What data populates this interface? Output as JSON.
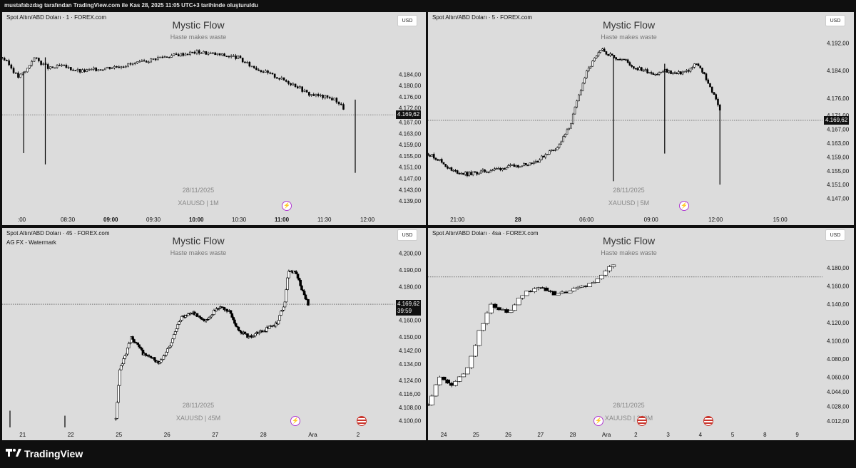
{
  "header": {
    "caption": "mustafabzdag tarafından TradingView.com ile Kas 28, 2025 11:05 UTC+3 tarihinde oluşturuldu"
  },
  "footer": {
    "brand": "TradingView",
    "logo_icon": "tradingview-logo-icon"
  },
  "colors": {
    "background": "#dcdcdc",
    "up": "#ffffff",
    "down": "#000000",
    "border": "#000000",
    "bolt": "#b03bd1",
    "flag": "#c9352c"
  },
  "panels": [
    {
      "symbol": "Spot Altın/ABD Doları · 1 · FOREX.com",
      "subtitle": "",
      "watermark_title": "Mystic Flow",
      "watermark_sub": "Haste makes waste",
      "watermark_date": "28/11/2025",
      "watermark_symbol": "XAUUSD | 1M",
      "currency": "USD",
      "last_price": "4.169,62",
      "countdown": "",
      "chart_data": {
        "type": "candlestick",
        "ylim": [
          4135,
          4200
        ],
        "y_ticks": [
          "4.184,00",
          "4.180,00",
          "4.176,00",
          "4.172,00",
          "4.167,00",
          "4.163,00",
          "4.159,00",
          "4.155,00",
          "4.151,00",
          "4.147,00",
          "4.143,00",
          "4.139,00"
        ],
        "y_tick_values": [
          4184,
          4180,
          4176,
          4172,
          4167,
          4163,
          4159,
          4155,
          4151,
          4147,
          4143,
          4139
        ],
        "x_ticks": [
          ":00",
          "08:30",
          "09:00",
          "09:30",
          "10:00",
          "10:30",
          "11:00",
          "11:30",
          "12:00"
        ],
        "x_tick_bold": [
          false,
          false,
          true,
          false,
          true,
          false,
          true,
          false,
          false
        ],
        "last_price_value": 4169.62,
        "path": [
          [
            0,
            4190
          ],
          [
            0.02,
            4187
          ],
          [
            0.04,
            4183
          ],
          [
            0.06,
            4185
          ],
          [
            0.08,
            4190
          ],
          [
            0.1,
            4188
          ],
          [
            0.12,
            4186
          ],
          [
            0.15,
            4187
          ],
          [
            0.2,
            4185
          ],
          [
            0.25,
            4186
          ],
          [
            0.3,
            4187
          ],
          [
            0.35,
            4188
          ],
          [
            0.4,
            4190
          ],
          [
            0.45,
            4191
          ],
          [
            0.5,
            4192
          ],
          [
            0.55,
            4191
          ],
          [
            0.6,
            4190
          ],
          [
            0.62,
            4188
          ],
          [
            0.65,
            4186
          ],
          [
            0.7,
            4183
          ],
          [
            0.75,
            4180
          ],
          [
            0.78,
            4177
          ],
          [
            0.82,
            4176
          ],
          [
            0.85,
            4175
          ],
          [
            0.87,
            4172
          ]
        ],
        "spikes": [
          {
            "t": 0.055,
            "low": 4156,
            "high": 4185
          },
          {
            "t": 0.11,
            "low": 4152,
            "high": 4190
          },
          {
            "t": 0.9,
            "low": 4149,
            "high": 4175
          }
        ]
      }
    },
    {
      "symbol": "Spot Altın/ABD Doları · 5 · FOREX.com",
      "subtitle": "",
      "watermark_title": "Mystic Flow",
      "watermark_sub": "Haste makes waste",
      "watermark_date": "28/11/2025",
      "watermark_symbol": "XAUUSD | 5M",
      "currency": "USD",
      "last_price": "4.169,62",
      "countdown": "",
      "chart_data": {
        "type": "candlestick",
        "ylim": [
          4143,
          4196
        ],
        "y_ticks": [
          "4.192,00",
          "4.184,00",
          "4.176,00",
          "4.171,00",
          "4.167,00",
          "4.163,00",
          "4.159,00",
          "4.155,00",
          "4.151,00",
          "4.147,00"
        ],
        "y_tick_values": [
          4192,
          4184,
          4176,
          4171,
          4167,
          4163,
          4159,
          4155,
          4151,
          4147
        ],
        "x_ticks": [
          "21:00",
          "28",
          "06:00",
          "09:00",
          "12:00",
          "15:00"
        ],
        "x_tick_bold": [
          false,
          true,
          false,
          false,
          false,
          false
        ],
        "last_price_value": 4169.62,
        "path": [
          [
            0,
            4160
          ],
          [
            0.03,
            4158
          ],
          [
            0.06,
            4155
          ],
          [
            0.1,
            4154
          ],
          [
            0.15,
            4155
          ],
          [
            0.2,
            4156
          ],
          [
            0.25,
            4157
          ],
          [
            0.28,
            4158
          ],
          [
            0.3,
            4160
          ],
          [
            0.33,
            4162
          ],
          [
            0.36,
            4168
          ],
          [
            0.38,
            4176
          ],
          [
            0.4,
            4183
          ],
          [
            0.42,
            4187
          ],
          [
            0.44,
            4190
          ],
          [
            0.47,
            4188
          ],
          [
            0.5,
            4187
          ],
          [
            0.52,
            4185
          ],
          [
            0.55,
            4184
          ],
          [
            0.58,
            4183
          ],
          [
            0.6,
            4184
          ],
          [
            0.63,
            4183
          ],
          [
            0.66,
            4184
          ],
          [
            0.68,
            4186
          ],
          [
            0.7,
            4183
          ],
          [
            0.72,
            4178
          ],
          [
            0.74,
            4173
          ]
        ],
        "spikes": [
          {
            "t": 0.47,
            "low": 4152,
            "high": 4188
          },
          {
            "t": 0.6,
            "low": 4160,
            "high": 4186
          },
          {
            "t": 0.74,
            "low": 4151,
            "high": 4173
          }
        ]
      }
    },
    {
      "symbol": "Spot Altın/ABD Doları · 45 · FOREX.com",
      "subtitle": "AG FX - Watermark",
      "watermark_title": "Mystic Flow",
      "watermark_sub": "Haste makes waste",
      "watermark_date": "28/11/2025",
      "watermark_symbol": "XAUUSD | 45M",
      "currency": "USD",
      "last_price": "4.169,62",
      "countdown": "39:59",
      "chart_data": {
        "type": "candlestick",
        "ylim": [
          4096,
          4205
        ],
        "y_ticks": [
          "4.200,00",
          "4.190,00",
          "4.180,00",
          "4.160,00",
          "4.150,00",
          "4.142,00",
          "4.134,00",
          "4.124,00",
          "4.116,00",
          "4.108,00",
          "4.100,00"
        ],
        "y_tick_values": [
          4200,
          4190,
          4180,
          4160,
          4150,
          4142,
          4134,
          4124,
          4116,
          4108,
          4100
        ],
        "x_ticks": [
          "21",
          "22",
          "25",
          "26",
          "27",
          "28",
          "Ara",
          "2"
        ],
        "x_tick_bold": [
          false,
          false,
          false,
          false,
          false,
          false,
          false,
          false
        ],
        "last_price_value": 4169.62,
        "path": [
          [
            0.29,
            4101
          ],
          [
            0.3,
            4130
          ],
          [
            0.33,
            4150
          ],
          [
            0.36,
            4140
          ],
          [
            0.4,
            4135
          ],
          [
            0.43,
            4145
          ],
          [
            0.45,
            4160
          ],
          [
            0.48,
            4165
          ],
          [
            0.52,
            4160
          ],
          [
            0.55,
            4168
          ],
          [
            0.58,
            4165
          ],
          [
            0.6,
            4155
          ],
          [
            0.63,
            4150
          ],
          [
            0.66,
            4153
          ],
          [
            0.7,
            4158
          ],
          [
            0.72,
            4170
          ],
          [
            0.73,
            4190
          ],
          [
            0.75,
            4188
          ],
          [
            0.77,
            4175
          ],
          [
            0.78,
            4170
          ]
        ],
        "spikes": [
          {
            "t": 0.02,
            "low": 4096,
            "high": 4106
          },
          {
            "t": 0.16,
            "low": 4096,
            "high": 4103
          }
        ]
      }
    },
    {
      "symbol": "Spot Altın/ABD Doları · 4sa · FOREX.com",
      "subtitle": "",
      "watermark_title": "Mystic Flow",
      "watermark_sub": "Haste makes waste",
      "watermark_date": "28/11/2025",
      "watermark_symbol": "XAUUSD | 240M",
      "currency": "USD",
      "last_price": "",
      "countdown": "",
      "chart_data": {
        "type": "candlestick",
        "ylim": [
          4005,
          4205
        ],
        "y_ticks": [
          "4.180,00",
          "4.160,00",
          "4.140,00",
          "4.120,00",
          "4.100,00",
          "4.080,00",
          "4.060,00",
          "4.044,00",
          "4.028,00",
          "4.012,00"
        ],
        "y_tick_values": [
          4180,
          4160,
          4140,
          4120,
          4100,
          4080,
          4060,
          4044,
          4028,
          4012
        ],
        "x_ticks": [
          "24",
          "25",
          "26",
          "27",
          "28",
          "Ara",
          "2",
          "3",
          "4",
          "5",
          "8",
          "9"
        ],
        "x_tick_bold": [
          false,
          false,
          false,
          false,
          false,
          false,
          false,
          false,
          false,
          false,
          false,
          false
        ],
        "last_price_value": 4170,
        "path": [
          [
            0.0,
            4030
          ],
          [
            0.03,
            4060
          ],
          [
            0.06,
            4050
          ],
          [
            0.1,
            4070
          ],
          [
            0.13,
            4110
          ],
          [
            0.16,
            4140
          ],
          [
            0.2,
            4130
          ],
          [
            0.24,
            4150
          ],
          [
            0.28,
            4160
          ],
          [
            0.32,
            4150
          ],
          [
            0.36,
            4155
          ],
          [
            0.4,
            4160
          ],
          [
            0.44,
            4170
          ],
          [
            0.47,
            4185
          ]
        ],
        "spikes": []
      }
    }
  ]
}
